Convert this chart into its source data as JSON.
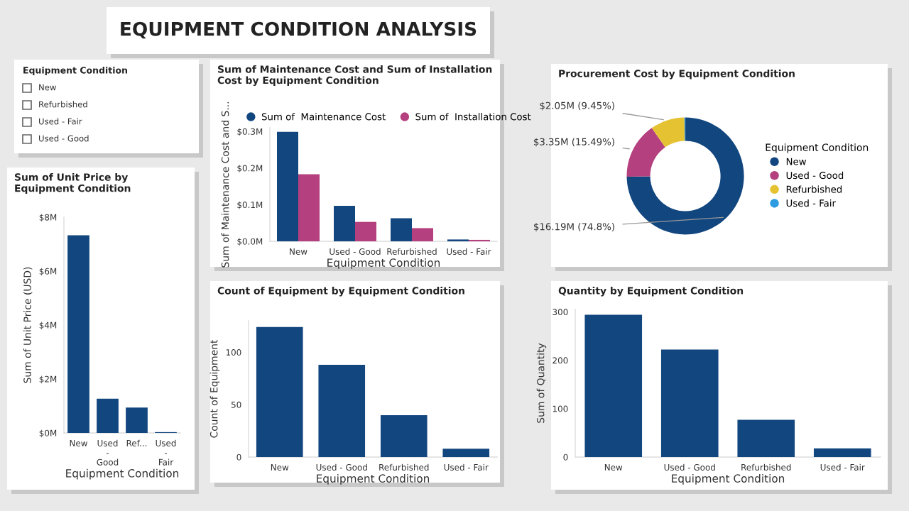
{
  "chart_data": [
    {
      "type": "other",
      "title": "EQUIPMENT CONDITION ANALYSIS"
    },
    {
      "type": "other",
      "title": "Equipment Condition",
      "annotations": [
        "New",
        "Refurbished",
        "Used - Fair",
        "Used - Good"
      ]
    },
    {
      "type": "bar",
      "title": "Sum of Unit Price by\nEquipment Condition",
      "xlabel": "Equipment Condition",
      "ylabel": "Sum of Unit Price (USD)",
      "categories": [
        "New",
        "Used - Good",
        "Ref...",
        "Used - Fair"
      ],
      "series": [
        {
          "color": "#12467f",
          "values": [
            7.33,
            1.27,
            0.94,
            0.03
          ]
        }
      ],
      "ylim": [
        0,
        8
      ],
      "yticks": [
        {
          "value": 0,
          "label": "$0M"
        },
        {
          "value": 2,
          "label": "$2M"
        },
        {
          "value": 4,
          "label": "$4M"
        },
        {
          "value": 6,
          "label": "$6M"
        },
        {
          "value": 8,
          "label": "$8M"
        }
      ],
      "grid": false
    },
    {
      "type": "bar",
      "title": "Sum of Maintenance Cost and Sum of Installation\nCost by Equipment Condition",
      "xlabel": "Equipment Condition",
      "ylabel": "Sum of Maintenance Cost and S...",
      "categories": [
        "New",
        "Used - Good",
        "Refurbished",
        "Used - Fair"
      ],
      "series": [
        {
          "name": "Sum of  Maintenance Cost",
          "color": "#12467f",
          "values": [
            0.299,
            0.097,
            0.063,
            0.005
          ]
        },
        {
          "name": "Sum of  Installation Cost",
          "color": "#b5407f",
          "values": [
            0.183,
            0.053,
            0.036,
            0.004
          ]
        }
      ],
      "ylim": [
        0,
        0.31
      ],
      "yticks": [
        {
          "value": 0,
          "label": "$0.0M"
        },
        {
          "value": 0.1,
          "label": "$0.1M"
        },
        {
          "value": 0.2,
          "label": "$0.2M"
        },
        {
          "value": 0.3,
          "label": "$0.3M"
        }
      ],
      "grid": false,
      "legend": "top left"
    },
    {
      "type": "donut",
      "title": "Procurement Cost by Equipment Condition",
      "legend_title": "Equipment Condition",
      "legend": "right",
      "categories": [
        "New",
        "Used - Good",
        "Refurbished",
        "Used - Fair"
      ],
      "values": [
        74.8,
        15.49,
        9.45,
        0.26
      ],
      "colors": [
        "#12467f",
        "#b5407f",
        "#e5c232",
        "#2f9be0"
      ],
      "value_labels": [
        "$16.19M (74.8%)",
        "$3.35M (15.49%)",
        "$2.05M (9.45%)",
        null
      ]
    },
    {
      "type": "bar",
      "title": "Count of Equipment by Equipment Condition",
      "xlabel": "Equipment Condition",
      "ylabel": "Count of Equipment",
      "categories": [
        "New",
        "Used - Good",
        "Refurbished",
        "Used - Fair"
      ],
      "series": [
        {
          "color": "#12467f",
          "values": [
            124,
            88,
            40,
            8
          ]
        }
      ],
      "ylim": [
        0,
        130
      ],
      "yticks": [
        0,
        50,
        100
      ],
      "grid": false
    },
    {
      "type": "bar",
      "title": "Quantity by Equipment Condition",
      "xlabel": "Equipment Condition",
      "ylabel": "Sum of Quantity",
      "categories": [
        "New",
        "Used - Good",
        "Refurbished",
        "Used - Fair"
      ],
      "series": [
        {
          "color": "#12467f",
          "values": [
            294,
            222,
            77,
            18
          ]
        }
      ],
      "ylim": [
        0,
        305
      ],
      "yticks": [
        0,
        100,
        200,
        300
      ],
      "grid": false
    }
  ]
}
